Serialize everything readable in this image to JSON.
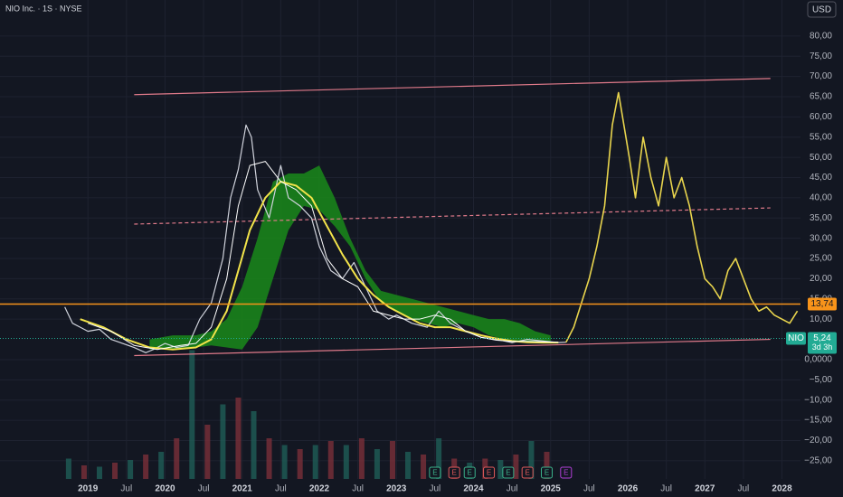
{
  "chart_data": {
    "type": "line",
    "title": "NIO Inc. · 1S · NYSE",
    "currency": "USD",
    "xlim": [
      2017.86,
      2028.24
    ],
    "ylim": [
      -29.5,
      88.9
    ],
    "xticks": [
      {
        "value": 2019,
        "label": "2019"
      },
      {
        "value": 2019.5,
        "label": "Jul"
      },
      {
        "value": 2020,
        "label": "2020"
      },
      {
        "value": 2020.5,
        "label": "Jul"
      },
      {
        "value": 2021,
        "label": "2021"
      },
      {
        "value": 2021.5,
        "label": "Jul"
      },
      {
        "value": 2022,
        "label": "2022"
      },
      {
        "value": 2022.5,
        "label": "Jul"
      },
      {
        "value": 2023,
        "label": "2023"
      },
      {
        "value": 2023.5,
        "label": "Jul"
      },
      {
        "value": 2024,
        "label": "2024"
      },
      {
        "value": 2024.5,
        "label": "Jul"
      },
      {
        "value": 2025,
        "label": "2025"
      },
      {
        "value": 2025.5,
        "label": "Jul"
      },
      {
        "value": 2026,
        "label": "2026"
      },
      {
        "value": 2026.5,
        "label": "Jul"
      },
      {
        "value": 2027,
        "label": "2027"
      },
      {
        "value": 2027.5,
        "label": "Jul"
      },
      {
        "value": 2028,
        "label": "2028"
      }
    ],
    "yticks": [
      {
        "value": 80,
        "label": "80,00"
      },
      {
        "value": 75,
        "label": "75,00"
      },
      {
        "value": 70,
        "label": "70,00"
      },
      {
        "value": 65,
        "label": "65,00"
      },
      {
        "value": 60,
        "label": "60,00"
      },
      {
        "value": 55,
        "label": "55,00"
      },
      {
        "value": 50,
        "label": "50,00"
      },
      {
        "value": 45,
        "label": "45,00"
      },
      {
        "value": 40,
        "label": "40,00"
      },
      {
        "value": 35,
        "label": "35,00"
      },
      {
        "value": 30,
        "label": "30,00"
      },
      {
        "value": 25,
        "label": "25,00"
      },
      {
        "value": 20,
        "label": "20,00"
      },
      {
        "value": 15,
        "label": "15,00"
      },
      {
        "value": 10,
        "label": "10,00"
      },
      {
        "value": 0,
        "label": "0,0000"
      },
      {
        "value": -5,
        "label": "−5,00"
      },
      {
        "value": -10,
        "label": "−10,00"
      },
      {
        "value": -15,
        "label": "−15,00"
      },
      {
        "value": -20,
        "label": "−20,00"
      },
      {
        "value": -25,
        "label": "−25,00"
      }
    ],
    "grid": true,
    "series": [
      {
        "color": "#d0d3dc",
        "width": 1.2,
        "x": [
          2018.7,
          2018.8,
          2018.9,
          2019.0,
          2019.15,
          2019.3,
          2019.45,
          2019.6,
          2019.75,
          2019.85,
          2020.0,
          2020.15,
          2020.3,
          2020.45,
          2020.6,
          2020.75,
          2020.85,
          2020.95,
          2021.05,
          2021.12,
          2021.2,
          2021.35,
          2021.5,
          2021.6,
          2021.75,
          2021.9,
          2022.0,
          2022.15,
          2022.3,
          2022.45,
          2022.6,
          2022.75,
          2022.9,
          2023.0,
          2023.2,
          2023.4,
          2023.55,
          2023.7,
          2023.9,
          2024.1,
          2024.3,
          2024.5,
          2024.7,
          2024.9,
          2025.1,
          2025.2
        ],
        "values": [
          13,
          9,
          8,
          7,
          7.5,
          5,
          4,
          3,
          1.7,
          2.5,
          4,
          3,
          3.5,
          10,
          14,
          25,
          40,
          47,
          58,
          55,
          42,
          35,
          48,
          40,
          38,
          35,
          28,
          22,
          20,
          24,
          18,
          12,
          10,
          11,
          9,
          8,
          12,
          9,
          7,
          5.5,
          5,
          4.2,
          5,
          4.6,
          4.2,
          4.3
        ]
      },
      {
        "color": "#e8d44d",
        "width": 1.6,
        "x": [
          2025.2,
          2025.3,
          2025.4,
          2025.5,
          2025.6,
          2025.7,
          2025.8,
          2025.88,
          2025.95,
          2026.02,
          2026.1,
          2026.2,
          2026.3,
          2026.4,
          2026.5,
          2026.6,
          2026.7,
          2026.8,
          2026.9,
          2027.0,
          2027.1,
          2027.2,
          2027.3,
          2027.4,
          2027.5,
          2027.6,
          2027.7,
          2027.8,
          2027.9,
          2028.0,
          2028.1,
          2028.2
        ],
        "values": [
          4.3,
          8,
          14,
          20,
          28,
          38,
          58,
          66,
          58,
          50,
          40,
          55,
          45,
          38,
          50,
          40,
          45,
          38,
          28,
          20,
          18,
          15,
          22,
          25,
          20,
          15,
          12,
          13,
          11,
          10,
          9,
          12
        ]
      },
      {
        "color": "#f2e34a",
        "width": 2,
        "x": [
          2018.9,
          2019.2,
          2019.5,
          2019.8,
          2020.1,
          2020.4,
          2020.6,
          2020.8,
          2020.95,
          2021.1,
          2021.3,
          2021.5,
          2021.7,
          2021.9,
          2022.1,
          2022.3,
          2022.5,
          2022.7,
          2022.9,
          2023.1,
          2023.3,
          2023.5,
          2023.7,
          2023.9,
          2024.1,
          2024.3,
          2024.5,
          2024.7,
          2024.9,
          2025.1
        ],
        "values": [
          10,
          8,
          5,
          3,
          2.5,
          3,
          5,
          12,
          22,
          32,
          40,
          44,
          43,
          40,
          33,
          26,
          20,
          16,
          13,
          11,
          9,
          8,
          8,
          7,
          6,
          5.2,
          4.6,
          4.3,
          4.2,
          4.2
        ]
      },
      {
        "color": "#ffffff",
        "width": 1,
        "x": [
          2019.0,
          2019.3,
          2019.6,
          2019.9,
          2020.2,
          2020.4,
          2020.6,
          2020.8,
          2020.95,
          2021.1,
          2021.3,
          2021.5,
          2021.7,
          2021.9,
          2022.1,
          2022.3,
          2022.5,
          2022.7,
          2022.9,
          2023.1,
          2023.3,
          2023.5,
          2023.7,
          2023.9,
          2024.1,
          2024.3,
          2024.5,
          2024.7,
          2024.9,
          2025.1
        ],
        "values": [
          9,
          7,
          3.5,
          2.5,
          3.5,
          4,
          8,
          20,
          38,
          48,
          49,
          44,
          42,
          38,
          25,
          20,
          18,
          12,
          11,
          10,
          10,
          11,
          10,
          7,
          5.5,
          4.8,
          4.5,
          4.5,
          4.4,
          4.3
        ]
      }
    ],
    "cloud": {
      "color": "#1a8a1a",
      "x": [
        2019.8,
        2020.1,
        2020.4,
        2020.6,
        2020.8,
        2021.0,
        2021.2,
        2021.4,
        2021.6,
        2021.8,
        2022.0,
        2022.2,
        2022.4,
        2022.6,
        2022.8,
        2023.0,
        2023.2,
        2023.4,
        2023.6,
        2023.8,
        2024.0,
        2024.2,
        2024.4,
        2024.6,
        2024.8,
        2025.0
      ],
      "upper": [
        5,
        6,
        6,
        7,
        10,
        18,
        30,
        44,
        46,
        46,
        48,
        40,
        30,
        22,
        17,
        16,
        15,
        14,
        13,
        12,
        11,
        10,
        10,
        9,
        7,
        6
      ],
      "lower": [
        2.5,
        2.5,
        3,
        3.5,
        3,
        2.5,
        8,
        20,
        32,
        38,
        37,
        33,
        28,
        20,
        14,
        12,
        10,
        9,
        8,
        9,
        8,
        6,
        5,
        4.5,
        4.5,
        4.5
      ]
    },
    "lines": [
      {
        "color": "#e07a8a",
        "dash": false,
        "x": [
          2019.6,
          2027.85
        ],
        "y": [
          65.5,
          69.5
        ]
      },
      {
        "color": "#e07a8a",
        "dash": true,
        "x": [
          2019.6,
          2027.85
        ],
        "y": [
          33.5,
          37.5
        ]
      },
      {
        "color": "#e07a8a",
        "dash": false,
        "x": [
          2019.6,
          2027.85
        ],
        "y": [
          1,
          5
        ]
      }
    ],
    "last_price": {
      "value": 13.74,
      "label": "13,74",
      "color": "#f7931a"
    },
    "quote": {
      "symbol": "NIO",
      "price": {
        "value": 5.24,
        "label": "5,24"
      },
      "countdown": "3d 3h",
      "color": "#22ab94"
    },
    "volume_ylim": [
      0,
      100
    ],
    "volume": {
      "x": [
        2018.75,
        2018.95,
        2019.15,
        2019.35,
        2019.55,
        2019.75,
        2019.95,
        2020.15,
        2020.35,
        2020.55,
        2020.75,
        2020.95,
        2021.15,
        2021.35,
        2021.55,
        2021.75,
        2021.95,
        2022.15,
        2022.35,
        2022.55,
        2022.75,
        2022.95,
        2023.15,
        2023.35,
        2023.55,
        2023.75,
        2023.95,
        2024.15,
        2024.35,
        2024.55,
        2024.75,
        2024.95
      ],
      "values": [
        15,
        10,
        9,
        12,
        14,
        18,
        20,
        30,
        95,
        40,
        55,
        60,
        50,
        30,
        25,
        22,
        25,
        28,
        25,
        30,
        22,
        28,
        20,
        18,
        30,
        15,
        12,
        15,
        14,
        18,
        28,
        20
      ]
    },
    "events": {
      "x": [
        2023.5,
        2023.75,
        2023.95,
        2024.2,
        2024.45,
        2024.7,
        2024.95,
        2025.2
      ],
      "labels": [
        "E",
        "E",
        "E",
        "E",
        "E",
        "E",
        "E",
        "E"
      ]
    }
  }
}
